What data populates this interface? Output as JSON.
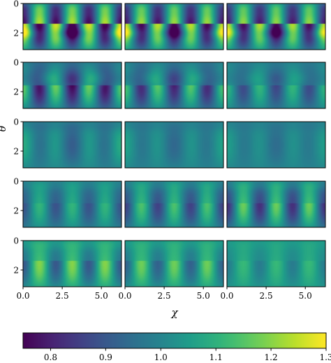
{
  "chart_data": {
    "type": "heatmap",
    "layout": {
      "rows": 5,
      "cols": 3,
      "sharex": true,
      "sharey": true
    },
    "xlabel": "χ",
    "ylabel": "θ",
    "xlim": [
      0,
      6.2832
    ],
    "ylim": [
      3.1416,
      0
    ],
    "xticks": [
      0,
      2.5,
      5
    ],
    "xtick_labels": [
      "0.0",
      "2.5",
      "5.0"
    ],
    "yticks": [
      0,
      2
    ],
    "ytick_labels": [
      "0",
      "2"
    ],
    "colormap": "viridis",
    "colorbar": {
      "orientation": "horizontal",
      "placement": "bottom",
      "range": [
        0.75,
        1.3
      ],
      "ticks": [
        0.8,
        0.9,
        1.0,
        1.1,
        1.2,
        1.3
      ],
      "tick_labels": [
        "0.8",
        "0.9",
        "1.0",
        "1.1",
        "1.2",
        "1.3"
      ]
    },
    "panels": [
      {
        "row": 0,
        "col": 0,
        "amplitude": 0.27,
        "bias": 0.0,
        "pattern": "A"
      },
      {
        "row": 0,
        "col": 1,
        "amplitude": 0.25,
        "bias": 0.0,
        "pattern": "A"
      },
      {
        "row": 0,
        "col": 2,
        "amplitude": 0.24,
        "bias": 0.0,
        "pattern": "A"
      },
      {
        "row": 1,
        "col": 0,
        "amplitude": 0.2,
        "bias": -0.03,
        "pattern": "B"
      },
      {
        "row": 1,
        "col": 1,
        "amplitude": 0.17,
        "bias": -0.02,
        "pattern": "B"
      },
      {
        "row": 1,
        "col": 2,
        "amplitude": 0.12,
        "bias": -0.01,
        "pattern": "B"
      },
      {
        "row": 2,
        "col": 0,
        "amplitude": 0.08,
        "bias": 0.0,
        "pattern": "C"
      },
      {
        "row": 2,
        "col": 1,
        "amplitude": 0.06,
        "bias": 0.0,
        "pattern": "C"
      },
      {
        "row": 2,
        "col": 2,
        "amplitude": 0.05,
        "bias": 0.0,
        "pattern": "C"
      },
      {
        "row": 3,
        "col": 0,
        "amplitude": 0.1,
        "bias": 0.0,
        "pattern": "D"
      },
      {
        "row": 3,
        "col": 1,
        "amplitude": 0.13,
        "bias": 0.0,
        "pattern": "D"
      },
      {
        "row": 3,
        "col": 2,
        "amplitude": 0.16,
        "bias": 0.0,
        "pattern": "D"
      },
      {
        "row": 4,
        "col": 0,
        "amplitude": 0.15,
        "bias": 0.05,
        "pattern": "E"
      },
      {
        "row": 4,
        "col": 1,
        "amplitude": 0.13,
        "bias": 0.05,
        "pattern": "E"
      },
      {
        "row": 4,
        "col": 2,
        "amplitude": 0.07,
        "bias": 0.05,
        "pattern": "E"
      }
    ]
  }
}
